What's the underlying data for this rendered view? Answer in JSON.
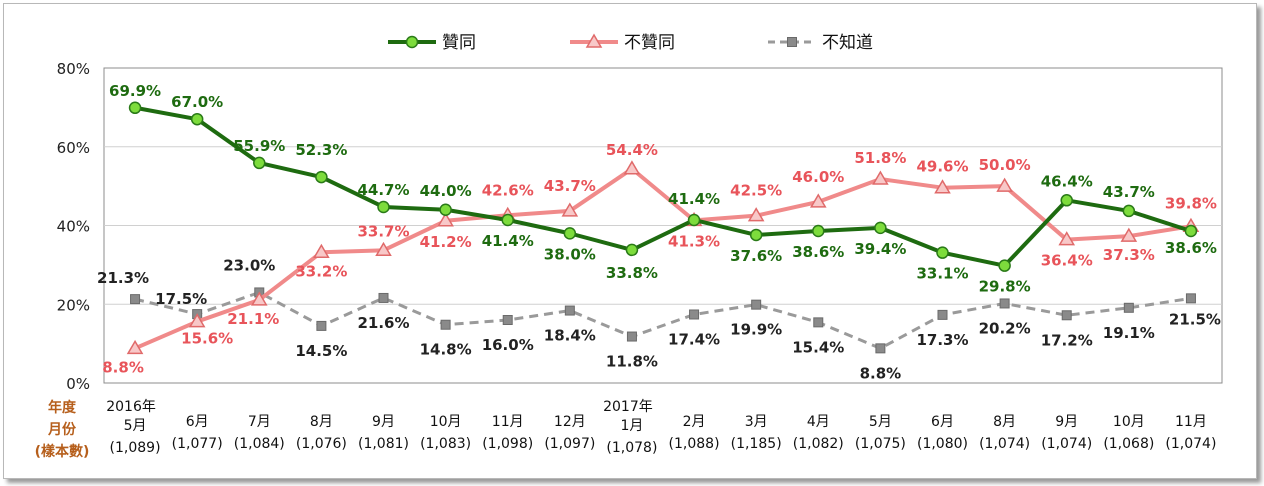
{
  "chart_data": {
    "type": "line",
    "row_labels": [
      "年度",
      "月份",
      "(樣本數)"
    ],
    "years": [
      {
        "label": "2016年",
        "index": 0
      },
      {
        "label": "2017年",
        "index": 8
      }
    ],
    "months": [
      "5月",
      "6月",
      "7月",
      "8月",
      "9月",
      "10月",
      "11月",
      "12月",
      "1月",
      "2月",
      "3月",
      "4月",
      "5月",
      "6月",
      "8月",
      "9月",
      "10月",
      "11月"
    ],
    "samples": [
      "(1,089)",
      "(1,077)",
      "(1,084)",
      "(1,076)",
      "(1,081)",
      "(1,083)",
      "(1,098)",
      "(1,097)",
      "(1,078)",
      "(1,088)",
      "(1,185)",
      "(1,082)",
      "(1,075)",
      "(1,080)",
      "(1,074)",
      "(1,074)",
      "(1,068)",
      "(1,074)"
    ],
    "y_ticks": [
      "0%",
      "20%",
      "40%",
      "60%",
      "80%"
    ],
    "ylim": [
      0,
      80
    ],
    "grid": true,
    "legend_position": "top",
    "series": [
      {
        "name": "贊同",
        "color": "#1e6b10",
        "marker": "circle",
        "marker_color": "#7ddc3c",
        "label_color": "#1e6b10",
        "values": [
          69.9,
          67.0,
          55.9,
          52.3,
          44.7,
          44.0,
          41.4,
          38.0,
          33.8,
          41.4,
          37.6,
          38.6,
          39.4,
          33.1,
          29.8,
          46.4,
          43.7,
          38.6
        ],
        "labels": [
          "69.9%",
          "67.0%",
          "55.9%",
          "52.3%",
          "44.7%",
          "44.0%",
          "41.4%",
          "38.0%",
          "33.8%",
          "41.4%",
          "37.6%",
          "38.6%",
          "39.4%",
          "33.1%",
          "29.8%",
          "46.4%",
          "43.7%",
          "38.6%"
        ]
      },
      {
        "name": "不贊同",
        "color": "#f08a8a",
        "marker": "triangle",
        "marker_color": "#f8c8c8",
        "label_color": "#e8545a",
        "values": [
          8.8,
          15.6,
          21.1,
          33.2,
          33.7,
          41.2,
          42.6,
          43.7,
          54.4,
          41.3,
          42.5,
          46.0,
          51.8,
          49.6,
          50.0,
          36.4,
          37.3,
          39.8
        ],
        "labels": [
          "8.8%",
          "15.6%",
          "21.1%",
          "33.2%",
          "33.7%",
          "41.2%",
          "42.6%",
          "43.7%",
          "54.4%",
          "41.3%",
          "42.5%",
          "46.0%",
          "51.8%",
          "49.6%",
          "50.0%",
          "36.4%",
          "37.3%",
          "39.8%"
        ]
      },
      {
        "name": "不知道",
        "color": "#9a9a9a",
        "marker": "x-square",
        "marker_color": "#8a8a8a",
        "label_color": "#222222",
        "values": [
          21.3,
          17.5,
          23.0,
          14.5,
          21.6,
          14.8,
          16.0,
          18.4,
          11.8,
          17.4,
          19.9,
          15.4,
          8.8,
          17.3,
          20.2,
          17.2,
          19.1,
          21.5
        ],
        "labels": [
          "21.3%",
          "17.5%",
          "23.0%",
          "14.5%",
          "21.6%",
          "14.8%",
          "16.0%",
          "18.4%",
          "11.8%",
          "17.4%",
          "19.9%",
          "15.4%",
          "8.8%",
          "17.3%",
          "20.2%",
          "17.2%",
          "19.1%",
          "21.5%"
        ]
      }
    ]
  }
}
